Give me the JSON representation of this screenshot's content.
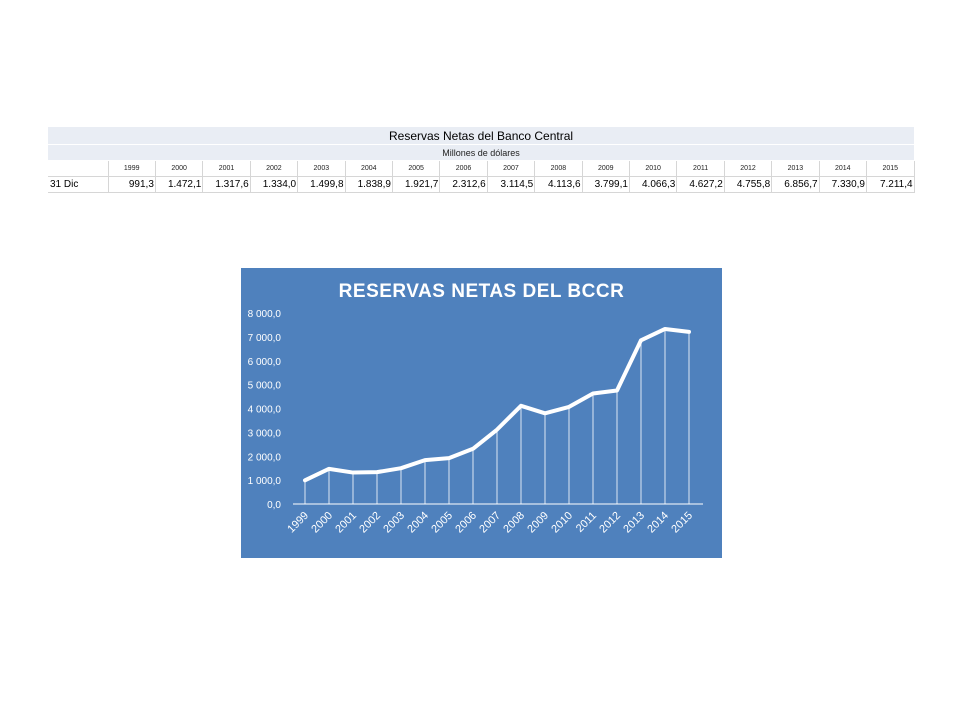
{
  "table": {
    "title": "Reservas Netas del Banco Central",
    "subtitle": "Millones de dólares",
    "row_label": "31 Dic",
    "years": [
      "1999",
      "2000",
      "2001",
      "2002",
      "2003",
      "2004",
      "2005",
      "2006",
      "2007",
      "2008",
      "2009",
      "2010",
      "2011",
      "2012",
      "2013",
      "2014",
      "2015"
    ],
    "values": [
      "991,3",
      "1.472,1",
      "1.317,6",
      "1.334,0",
      "1.499,8",
      "1.838,9",
      "1.921,7",
      "2.312,6",
      "3.114,5",
      "4.113,6",
      "3.799,1",
      "4.066,3",
      "4.627,2",
      "4.755,8",
      "6.856,7",
      "7.330,9",
      "7.211,4"
    ]
  },
  "colors": {
    "chart_background": "#4f81bd",
    "line": "#ffffff",
    "table_header_bg": "#e9edf4"
  },
  "chart_data": {
    "type": "line",
    "title": "RESERVAS NETAS DEL BCCR",
    "x": [
      "1999",
      "2000",
      "2001",
      "2002",
      "2003",
      "2004",
      "2005",
      "2006",
      "2007",
      "2008",
      "2009",
      "2010",
      "2011",
      "2012",
      "2013",
      "2014",
      "2015"
    ],
    "y": [
      991.3,
      1472.1,
      1317.6,
      1334.0,
      1499.8,
      1838.9,
      1921.7,
      2312.6,
      3114.5,
      4113.6,
      3799.1,
      4066.3,
      4627.2,
      4755.8,
      6856.7,
      7330.9,
      7211.4
    ],
    "ylim": [
      0,
      8000
    ],
    "yticks": [
      0,
      1000,
      2000,
      3000,
      4000,
      5000,
      6000,
      7000,
      8000
    ],
    "ytick_labels": [
      "0,0",
      "1 000,0",
      "2 000,0",
      "3 000,0",
      "4 000,0",
      "5 000,0",
      "6 000,0",
      "7 000,0",
      "8 000,0"
    ],
    "drop_lines": true,
    "grid": false,
    "legend": "none"
  }
}
